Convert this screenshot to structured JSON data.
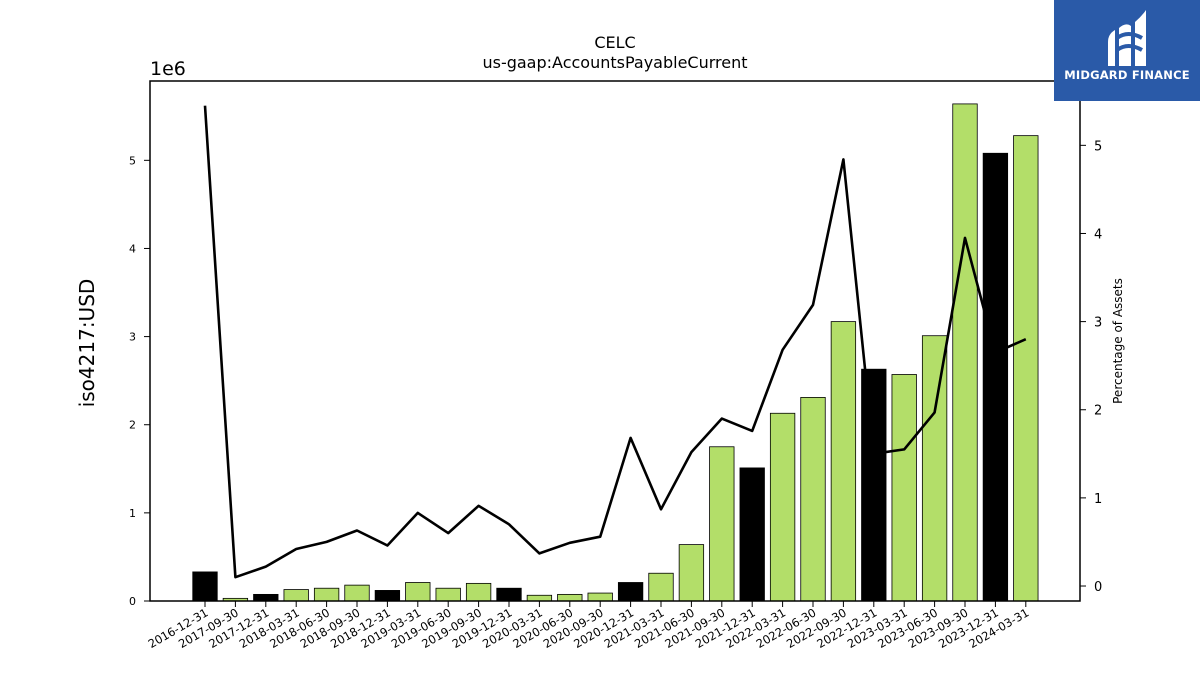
{
  "chart_data": {
    "type": "bar",
    "title": "CELC",
    "subtitle": "us-gaap:AccountsPayableCurrent",
    "ylabel": "iso4217:USD",
    "y2label": "Percentage of Assets",
    "offset_text": "1e6",
    "ylim": [
      0,
      5900000
    ],
    "y2lim": [
      -0.17,
      5.73
    ],
    "yticks": [
      0,
      1,
      2,
      3,
      4,
      5
    ],
    "y2ticks": [
      0,
      1,
      2,
      3,
      4,
      5
    ],
    "grid": false,
    "categories": [
      "2016-12-31",
      "2017-09-30",
      "2017-12-31",
      "2018-03-31",
      "2018-06-30",
      "2018-09-30",
      "2018-12-31",
      "2019-03-31",
      "2019-06-30",
      "2019-09-30",
      "2019-12-31",
      "2020-03-31",
      "2020-06-30",
      "2020-09-30",
      "2020-12-31",
      "2021-03-31",
      "2021-06-30",
      "2021-09-30",
      "2021-12-31",
      "2022-03-31",
      "2022-06-30",
      "2022-09-30",
      "2022-12-31",
      "2023-03-31",
      "2023-06-30",
      "2023-09-30",
      "2023-12-31",
      "2024-03-31"
    ],
    "series": [
      {
        "type": "bar",
        "values": [
          330000,
          30000,
          75000,
          130000,
          145000,
          180000,
          120000,
          210000,
          145000,
          200000,
          145000,
          65000,
          75000,
          90000,
          210000,
          315000,
          640000,
          1750000,
          1510000,
          2130000,
          2310000,
          3170000,
          2630000,
          2570000,
          3010000,
          5640000,
          5080000,
          5280000
        ],
        "colors": [
          "#000000",
          "#b3de69",
          "#000000",
          "#b3de69",
          "#b3de69",
          "#b3de69",
          "#000000",
          "#b3de69",
          "#b3de69",
          "#b3de69",
          "#000000",
          "#b3de69",
          "#b3de69",
          "#b3de69",
          "#000000",
          "#b3de69",
          "#b3de69",
          "#b3de69",
          "#000000",
          "#b3de69",
          "#b3de69",
          "#b3de69",
          "#000000",
          "#b3de69",
          "#b3de69",
          "#b3de69",
          "#000000",
          "#b3de69"
        ]
      },
      {
        "type": "line",
        "axis": "right",
        "color": "#000000",
        "values": [
          5.45,
          0.1,
          0.22,
          0.42,
          0.5,
          0.63,
          0.46,
          0.83,
          0.6,
          0.91,
          0.7,
          0.37,
          0.49,
          0.56,
          1.68,
          0.87,
          1.52,
          1.9,
          1.76,
          2.68,
          3.19,
          4.84,
          1.5,
          1.55,
          1.97,
          3.95,
          2.65,
          2.8
        ]
      }
    ]
  },
  "logo": {
    "text": "MIDGARD FINANCE",
    "color": "#2a5aa8"
  }
}
